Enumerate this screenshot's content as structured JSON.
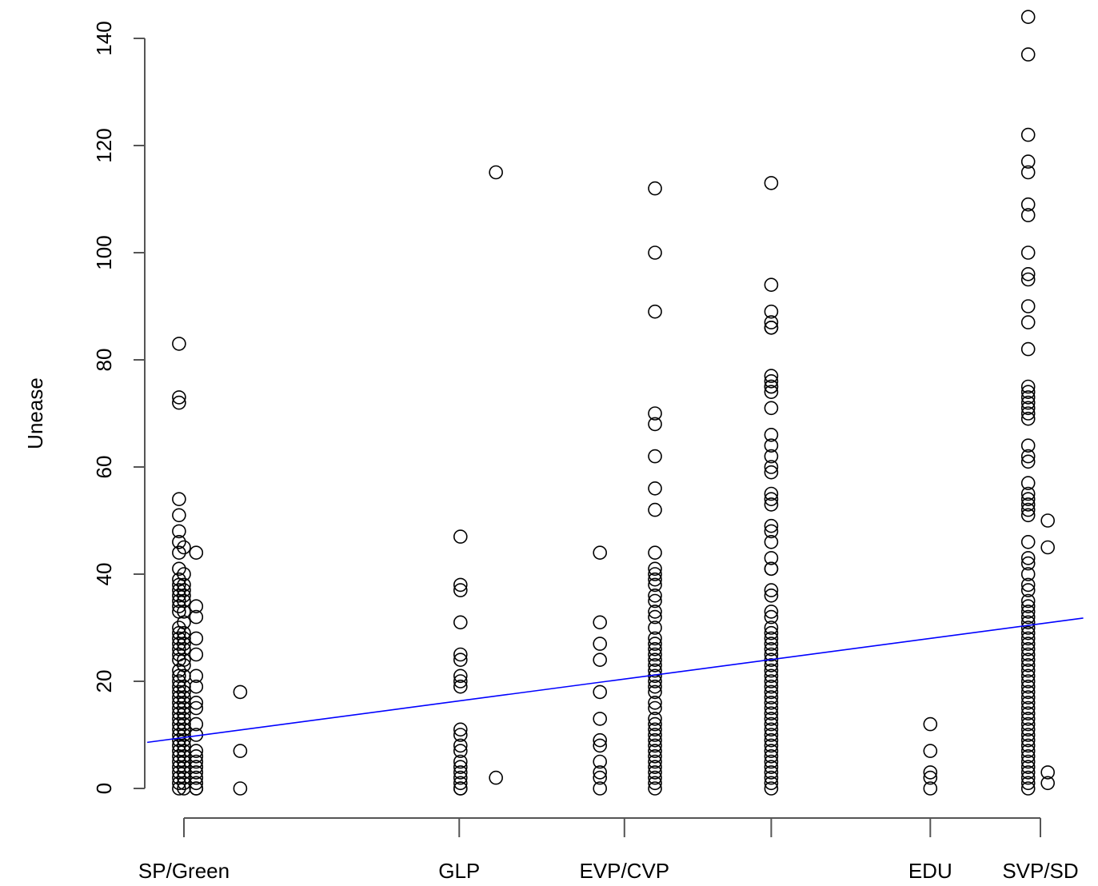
{
  "chart_data": {
    "type": "scatter",
    "title": "",
    "xlabel": "",
    "ylabel": "Unease",
    "ylim": [
      0,
      140
    ],
    "xlim": [
      0,
      7
    ],
    "grid": false,
    "y_ticks": [
      0,
      20,
      40,
      60,
      80,
      100,
      120,
      140
    ],
    "x_ticks": [
      {
        "x": 0,
        "label": "SP/Green"
      },
      {
        "x": 2.25,
        "label": "GLP"
      },
      {
        "x": 3.6,
        "label": "EVP/CVP"
      },
      {
        "x": 4.8,
        "label": ""
      },
      {
        "x": 6.1,
        "label": "EDU"
      },
      {
        "x": 7.0,
        "label": "SVP/SD"
      }
    ],
    "trend_line": {
      "x": [
        -0.3,
        7.35
      ],
      "y": [
        8.6,
        31.8
      ],
      "color": "#0000ff"
    },
    "series": [
      {
        "x": -0.04,
        "y": [
          83,
          73,
          72,
          54,
          51,
          48,
          46,
          44,
          41,
          39,
          38,
          37,
          36,
          35,
          34,
          33,
          30,
          29,
          28,
          27,
          26,
          25,
          24,
          22,
          21,
          20,
          19,
          18,
          17,
          16,
          15,
          14,
          13,
          12,
          11,
          10,
          9,
          8,
          7,
          6,
          5,
          4,
          3,
          2,
          1,
          0
        ]
      },
      {
        "x": 0,
        "y": [
          45,
          40,
          38,
          37,
          36,
          35,
          33,
          31,
          29,
          28,
          27,
          26,
          24,
          23,
          21,
          19,
          18,
          17,
          16,
          15,
          14,
          13,
          12,
          11,
          10,
          9,
          8,
          7,
          6,
          5,
          4,
          3,
          2,
          1,
          0
        ]
      },
      {
        "x": 0.1,
        "y": [
          44,
          34,
          32,
          28,
          25,
          21,
          19,
          16,
          15,
          12,
          10,
          7,
          6,
          5,
          4,
          3,
          2,
          1,
          0,
          0
        ]
      },
      {
        "x": 0.46,
        "y": [
          18,
          7,
          0
        ]
      },
      {
        "x": 2.26,
        "y": [
          47,
          38,
          37,
          31,
          25,
          24,
          21,
          20,
          19,
          11,
          10,
          8,
          7,
          5,
          4,
          3,
          2,
          1,
          0,
          0
        ]
      },
      {
        "x": 2.55,
        "y": [
          115,
          2
        ]
      },
      {
        "x": 3.4,
        "y": [
          44,
          31,
          27,
          24,
          18,
          13,
          9,
          8,
          5,
          3,
          2,
          0
        ]
      },
      {
        "x": 3.85,
        "y": [
          112,
          100,
          89,
          70,
          68,
          62,
          56,
          52,
          44,
          41,
          40,
          39,
          38,
          36,
          35,
          33,
          32,
          30,
          28,
          27,
          26,
          25,
          24,
          23,
          22,
          21,
          20,
          19,
          18,
          16,
          15,
          13,
          12,
          11,
          10,
          9,
          8,
          7,
          6,
          5,
          4,
          3,
          2,
          1,
          0
        ]
      },
      {
        "x": 4.8,
        "y": [
          113,
          94,
          89,
          87,
          86,
          86,
          77,
          76,
          75,
          75,
          74,
          71,
          66,
          64,
          62,
          60,
          59,
          55,
          54,
          53,
          49,
          48,
          46,
          43,
          41,
          41,
          37,
          36,
          33,
          32,
          30,
          29,
          28,
          27,
          26,
          25,
          24,
          23,
          22,
          21,
          20,
          19,
          18,
          17,
          16,
          15,
          14,
          13,
          12,
          11,
          10,
          9,
          8,
          7,
          6,
          5,
          4,
          3,
          2,
          1,
          0
        ]
      },
      {
        "x": 6.1,
        "y": [
          12,
          7,
          3,
          2,
          0
        ]
      },
      {
        "x": 6.9,
        "y": [
          144,
          137,
          122,
          117,
          115,
          109,
          107,
          100,
          96,
          95,
          90,
          87,
          82,
          75,
          74,
          73,
          72,
          71,
          70,
          69,
          64,
          62,
          61,
          57,
          55,
          54,
          53,
          52,
          51,
          46,
          43,
          42,
          40,
          38,
          37,
          35,
          34,
          33,
          32,
          31,
          30,
          29,
          28,
          27,
          26,
          25,
          24,
          23,
          22,
          21,
          20,
          19,
          18,
          17,
          16,
          15,
          14,
          13,
          12,
          11,
          10,
          9,
          8,
          7,
          6,
          5,
          4,
          3,
          2,
          1,
          0
        ]
      },
      {
        "x": 7.06,
        "y": [
          50,
          45,
          3,
          1
        ]
      }
    ]
  }
}
